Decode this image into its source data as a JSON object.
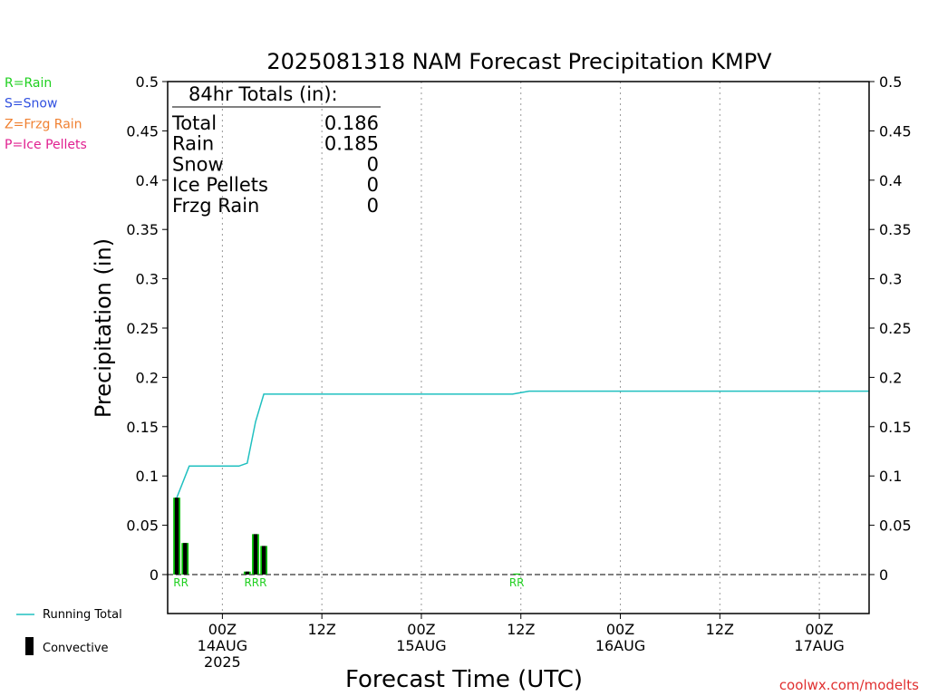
{
  "chart_data": {
    "type": "bar",
    "title": "2025081318 NAM Forecast Precipitation KMPV",
    "xlabel": "Forecast Time (UTC)",
    "ylabel": "Precipitation (in)",
    "ylim": [
      0,
      0.5
    ],
    "y_ticks": [
      "0",
      "0.05",
      "0.1",
      "0.15",
      "0.2",
      "0.25",
      "0.3",
      "0.35",
      "0.4",
      "0.45",
      "0.5"
    ],
    "x_ticks": [
      {
        "hour": 6,
        "lines": [
          "00Z",
          "14AUG",
          "2025"
        ]
      },
      {
        "hour": 18,
        "lines": [
          "12Z"
        ]
      },
      {
        "hour": 30,
        "lines": [
          "00Z",
          "15AUG"
        ]
      },
      {
        "hour": 42,
        "lines": [
          "12Z"
        ]
      },
      {
        "hour": 54,
        "lines": [
          "00Z",
          "16AUG"
        ]
      },
      {
        "hour": 66,
        "lines": [
          "12Z"
        ]
      },
      {
        "hour": 78,
        "lines": [
          "00Z",
          "17AUG"
        ]
      }
    ],
    "x_hours_range": [
      -0.6,
      84
    ],
    "running_total": {
      "name": "Running Total",
      "color": "#20c0c0",
      "x": [
        0.5,
        2,
        3,
        4,
        5,
        6,
        7,
        8,
        9,
        10,
        11,
        12,
        41,
        43,
        84
      ],
      "y": [
        0.078,
        0.11,
        0.11,
        0.11,
        0.11,
        0.11,
        0.11,
        0.11,
        0.113,
        0.155,
        0.183,
        0.183,
        0.183,
        0.186,
        0.186
      ]
    },
    "series": [
      {
        "name": "Total",
        "color": "#00c000",
        "x": [
          0.5,
          1.5,
          9,
          10,
          11,
          41.5
        ],
        "values": [
          0.078,
          0.032,
          0.003,
          0.041,
          0.029,
          0.001
        ]
      },
      {
        "name": "Convective",
        "color": "#000000",
        "x": [
          0.5,
          1.5,
          9,
          10,
          11,
          41.5
        ],
        "values": [
          0.078,
          0.032,
          0.003,
          0.041,
          0.029,
          0.0
        ]
      }
    ],
    "ptype_markers": [
      {
        "hour": 1.0,
        "text": "RR"
      },
      {
        "hour": 10.0,
        "text": "RRR"
      },
      {
        "hour": 41.5,
        "text": "RR"
      }
    ],
    "totals": {
      "header": "84hr Totals (in):",
      "rows": [
        {
          "label": "Total",
          "value": "0.186"
        },
        {
          "label": "Rain",
          "value": "0.185"
        },
        {
          "label": "Snow",
          "value": "0"
        },
        {
          "label": "Ice Pellets",
          "value": "0"
        },
        {
          "label": "Frzg Rain",
          "value": "0"
        }
      ]
    },
    "ptype_legend": [
      {
        "text": "R=Rain",
        "color": "#20d020"
      },
      {
        "text": "S=Snow",
        "color": "#3050e0"
      },
      {
        "text": "Z=Frzg Rain",
        "color": "#f08030"
      },
      {
        "text": "P=Ice Pellets",
        "color": "#e02090"
      }
    ],
    "legend": {
      "running_total": "Running Total",
      "convective": "Convective"
    },
    "credit": "coolwx.com/modelts",
    "grid": "vertical-dotted"
  }
}
